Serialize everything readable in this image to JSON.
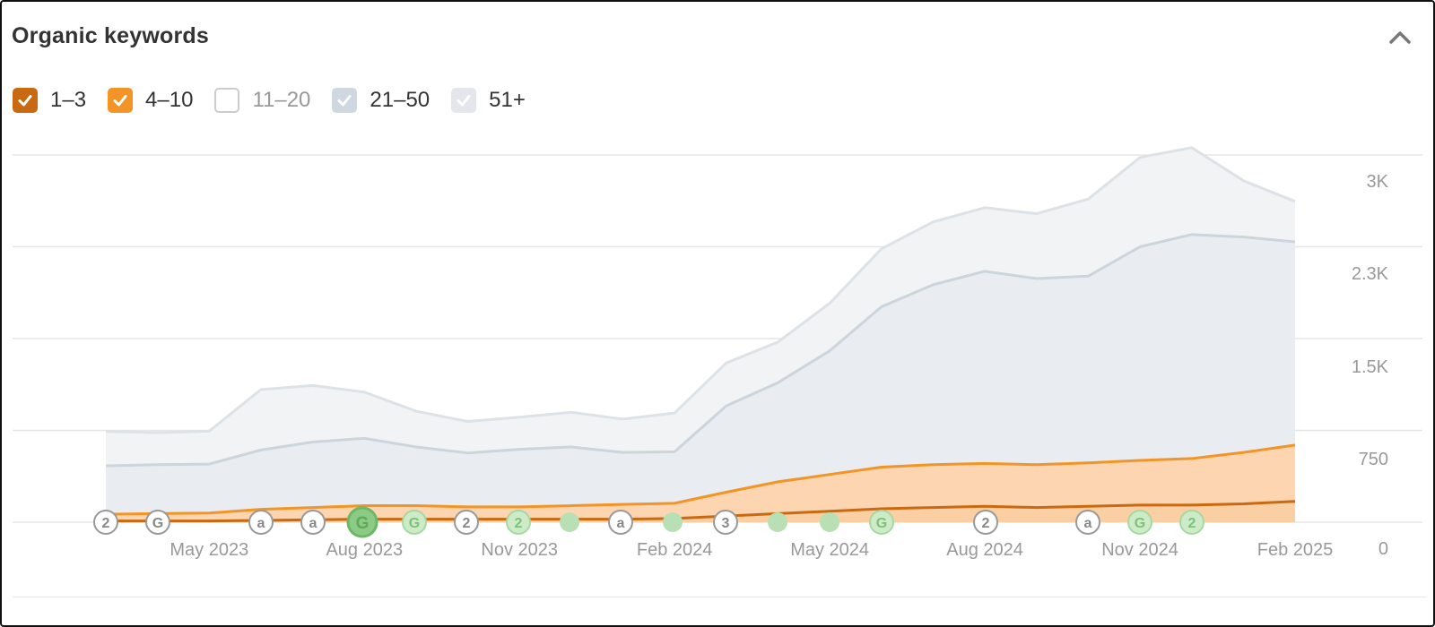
{
  "header": {
    "title": "Organic keywords"
  },
  "legend": [
    {
      "label": "1–3",
      "checked": true,
      "color": "#c96a12"
    },
    {
      "label": "4–10",
      "checked": true,
      "color": "#f39426"
    },
    {
      "label": "11–20",
      "checked": false,
      "color": "#ffffff"
    },
    {
      "label": "21–50",
      "checked": true,
      "color": "#cfd7e0"
    },
    {
      "label": "51+",
      "checked": true,
      "color": "#e3e7eb"
    }
  ],
  "chart_data": {
    "type": "area",
    "x": [
      "Mar 2023",
      "Apr 2023",
      "May 2023",
      "Jun 2023",
      "Jul 2023",
      "Aug 2023",
      "Sep 2023",
      "Oct 2023",
      "Nov 2023",
      "Dec 2023",
      "Jan 2024",
      "Feb 2024",
      "Mar 2024",
      "Apr 2024",
      "May 2024",
      "Jun 2024",
      "Jul 2024",
      "Aug 2024",
      "Sep 2024",
      "Oct 2024",
      "Nov 2024",
      "Dec 2024",
      "Jan 2025",
      "Feb 2025"
    ],
    "x_tick_labels": [
      "May 2023",
      "Aug 2023",
      "Nov 2023",
      "Feb 2024",
      "May 2024",
      "Aug 2024",
      "Nov 2024",
      "Feb 2025"
    ],
    "y_tick_labels": [
      "0",
      "750",
      "1.5K",
      "2.3K",
      "3K"
    ],
    "ylim": [
      0,
      3000
    ],
    "grid": true,
    "stacked": true,
    "series": [
      {
        "name": "1–3",
        "values": [
          10,
          10,
          10,
          15,
          20,
          25,
          25,
          25,
          25,
          25,
          25,
          30,
          50,
          70,
          90,
          110,
          120,
          130,
          120,
          130,
          140,
          140,
          150,
          170
        ],
        "color": "#c96a12"
      },
      {
        "name": "4–10",
        "values": [
          55,
          60,
          65,
          90,
          100,
          110,
          110,
          100,
          100,
          110,
          120,
          125,
          195,
          260,
          300,
          340,
          350,
          350,
          350,
          355,
          365,
          380,
          420,
          460
        ],
        "color": "#f39426"
      },
      {
        "name": "21–50",
        "values": [
          395,
          400,
          400,
          485,
          535,
          550,
          480,
          440,
          470,
          480,
          425,
          420,
          705,
          810,
          1010,
          1310,
          1470,
          1570,
          1520,
          1525,
          1745,
          1830,
          1760,
          1660
        ],
        "color": "#cfd7e0"
      },
      {
        "name": "51+",
        "values": [
          282,
          262,
          269,
          494,
          462,
          378,
          292,
          258,
          263,
          283,
          272,
          317,
          351,
          332,
          389,
          473,
          513,
          520,
          530,
          630,
          730,
          710,
          460,
          330
        ],
        "color": "#e3e7eb"
      }
    ],
    "events": [
      "2",
      "G",
      "a",
      "a",
      "G",
      "G",
      "2",
      "2",
      "",
      "a",
      "",
      "3",
      "",
      "",
      "G",
      "2",
      "a",
      "G",
      "2"
    ]
  }
}
